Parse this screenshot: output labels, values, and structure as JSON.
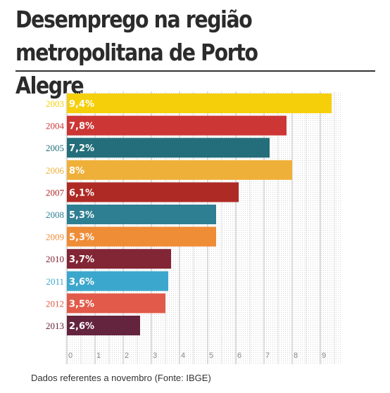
{
  "header": {
    "title_line1": "Desemprego na região",
    "title_line2": "metropolitana de  Porto Alegre"
  },
  "footnote": "Dados referentes a novembro (Fonte: IBGE)",
  "chart_data": {
    "type": "bar",
    "orientation": "horizontal",
    "categories": [
      "2003",
      "2004",
      "2005",
      "2006",
      "2007",
      "2008",
      "2009",
      "2010",
      "2011",
      "2012",
      "2013"
    ],
    "values": [
      9.4,
      7.8,
      7.2,
      8,
      6.1,
      5.3,
      5.3,
      3.7,
      3.6,
      3.5,
      2.6
    ],
    "value_labels": [
      "9,4%",
      "7,8%",
      "7,2%",
      "8%",
      "6,1%",
      "5,3%",
      "5,3%",
      "3,7%",
      "3,6%",
      "3,5%",
      "2,6%"
    ],
    "colors": [
      "#f5cf0a",
      "#cc3634",
      "#236e7a",
      "#efb03a",
      "#ae2a25",
      "#2f7f93",
      "#ef8c36",
      "#822636",
      "#3ca7cc",
      "#e25a49",
      "#64243e"
    ],
    "xlim": [
      0,
      9.5
    ],
    "xticks": [
      0,
      1,
      2,
      3,
      4,
      5,
      6,
      7,
      8,
      9
    ],
    "grid": true
  }
}
